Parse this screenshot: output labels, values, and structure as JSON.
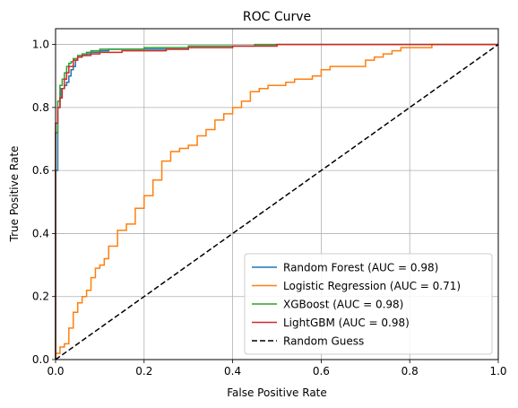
{
  "chart_data": {
    "type": "line",
    "title": "ROC Curve",
    "xlabel": "False Positive Rate",
    "ylabel": "True Positive Rate",
    "xlim": [
      0,
      1
    ],
    "ylim": [
      0,
      1.05
    ],
    "xticks": [
      0,
      0.2,
      0.4,
      0.6,
      0.8,
      1.0
    ],
    "xtick_labels": [
      "0.0",
      "0.2",
      "0.4",
      "0.6",
      "0.8",
      "1.0"
    ],
    "yticks": [
      0,
      0.2,
      0.4,
      0.6,
      0.8,
      1.0
    ],
    "ytick_labels": [
      "0.0",
      "0.2",
      "0.4",
      "0.6",
      "0.8",
      "1.0"
    ],
    "grid": true,
    "legend_position": "lower-right",
    "series": [
      {
        "name": "Random Forest (AUC = 0.98)",
        "color": "#1f77b4",
        "style": "solid",
        "x": [
          0,
          0,
          0.005,
          0.005,
          0.01,
          0.012,
          0.02,
          0.025,
          0.03,
          0.035,
          0.04,
          0.045,
          0.05,
          0.06,
          0.07,
          0.08,
          0.1,
          0.12,
          0.15,
          0.2,
          0.3,
          0.4,
          0.45,
          0.5,
          0.7,
          0.8,
          1.0
        ],
        "y": [
          0,
          0.2,
          0.6,
          0.7,
          0.8,
          0.83,
          0.86,
          0.87,
          0.88,
          0.9,
          0.92,
          0.93,
          0.95,
          0.96,
          0.965,
          0.97,
          0.975,
          0.98,
          0.985,
          0.985,
          0.985,
          0.995,
          0.995,
          0.995,
          1.0,
          1.0,
          1.0
        ]
      },
      {
        "name": "Logistic Regression (AUC = 0.71)",
        "color": "#ff7f0e",
        "style": "solid",
        "x": [
          0,
          0.01,
          0.02,
          0.03,
          0.04,
          0.05,
          0.06,
          0.07,
          0.08,
          0.09,
          0.1,
          0.11,
          0.12,
          0.14,
          0.16,
          0.18,
          0.2,
          0.22,
          0.24,
          0.26,
          0.28,
          0.3,
          0.32,
          0.34,
          0.36,
          0.38,
          0.4,
          0.42,
          0.44,
          0.46,
          0.48,
          0.5,
          0.52,
          0.54,
          0.56,
          0.58,
          0.6,
          0.62,
          0.64,
          0.66,
          0.68,
          0.7,
          0.72,
          0.74,
          0.76,
          0.78,
          0.8,
          0.85,
          0.9,
          0.95,
          1.0
        ],
        "y": [
          0,
          0.02,
          0.04,
          0.05,
          0.1,
          0.15,
          0.18,
          0.2,
          0.22,
          0.26,
          0.29,
          0.3,
          0.32,
          0.36,
          0.41,
          0.43,
          0.48,
          0.52,
          0.57,
          0.63,
          0.66,
          0.67,
          0.68,
          0.71,
          0.73,
          0.76,
          0.78,
          0.8,
          0.82,
          0.85,
          0.86,
          0.87,
          0.87,
          0.88,
          0.89,
          0.89,
          0.9,
          0.92,
          0.93,
          0.93,
          0.93,
          0.93,
          0.95,
          0.96,
          0.97,
          0.98,
          0.99,
          0.99,
          1.0,
          1.0,
          1.0
        ]
      },
      {
        "name": "XGBoost (AUC = 0.98)",
        "color": "#2ca02c",
        "style": "solid",
        "x": [
          0,
          0,
          0.005,
          0.01,
          0.015,
          0.02,
          0.025,
          0.03,
          0.035,
          0.04,
          0.05,
          0.06,
          0.07,
          0.08,
          0.1,
          0.15,
          0.2,
          0.3,
          0.45,
          0.5,
          0.7,
          0.8,
          1.0
        ],
        "y": [
          0,
          0.35,
          0.72,
          0.82,
          0.87,
          0.89,
          0.91,
          0.93,
          0.94,
          0.945,
          0.955,
          0.965,
          0.97,
          0.975,
          0.98,
          0.985,
          0.985,
          0.99,
          0.995,
          1.0,
          1.0,
          1.0,
          1.0
        ]
      },
      {
        "name": "LightGBM (AUC = 0.98)",
        "color": "#d62728",
        "style": "solid",
        "x": [
          0,
          0,
          0.005,
          0.01,
          0.015,
          0.02,
          0.025,
          0.03,
          0.04,
          0.05,
          0.06,
          0.08,
          0.1,
          0.15,
          0.2,
          0.25,
          0.3,
          0.4,
          0.5,
          0.6,
          0.7,
          0.8,
          1.0
        ],
        "y": [
          0,
          0.65,
          0.75,
          0.8,
          0.83,
          0.86,
          0.89,
          0.91,
          0.93,
          0.95,
          0.96,
          0.965,
          0.97,
          0.975,
          0.98,
          0.98,
          0.985,
          0.99,
          0.995,
          1.0,
          1.0,
          1.0,
          1.0
        ]
      },
      {
        "name": "Random Guess",
        "color": "#000000",
        "style": "dashed",
        "x": [
          0,
          1
        ],
        "y": [
          0,
          1
        ]
      }
    ]
  }
}
